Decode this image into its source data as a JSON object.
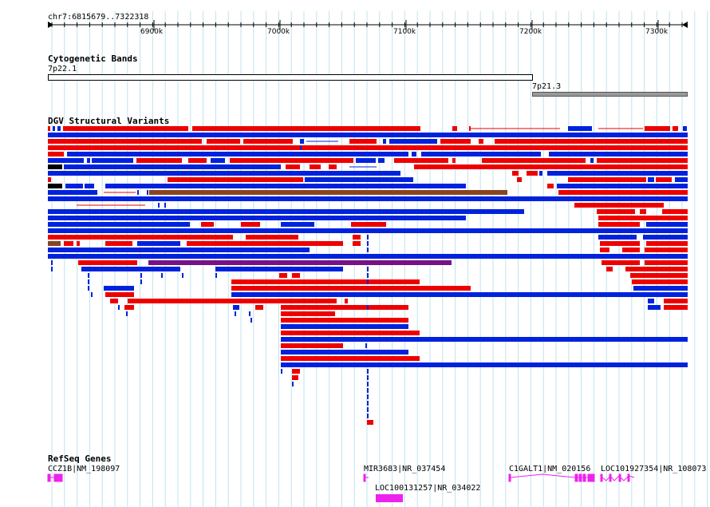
{
  "ruler": {
    "region": "chr7:6815679..7322318",
    "ticks": [
      "6900k",
      "7000k",
      "7100k",
      "7200k",
      "7300k"
    ]
  },
  "cytoband": {
    "title": "Cytogenetic Bands",
    "bands": [
      {
        "name": "7p22.1",
        "color": "#ffffff"
      },
      {
        "name": "7p21.3",
        "color": "#999999"
      }
    ]
  },
  "dgv": {
    "title": "DGV Structural Variants",
    "colors": {
      "gain": "#ee0000",
      "loss": "#0022dd",
      "inversion": "#771188",
      "complex": "#884422",
      "other": "#000000"
    }
  },
  "refseq": {
    "title": "RefSeq Genes",
    "color": "#ee22ee",
    "genes": [
      {
        "label": "CCZ1B|NM_198097"
      },
      {
        "label": "MIR3683|NR_037454"
      },
      {
        "label": "LOC100131257|NR_034022"
      },
      {
        "label": "C1GALT1|NM_020156"
      },
      {
        "label": "LOC101927354|NR_108073"
      }
    ]
  }
}
